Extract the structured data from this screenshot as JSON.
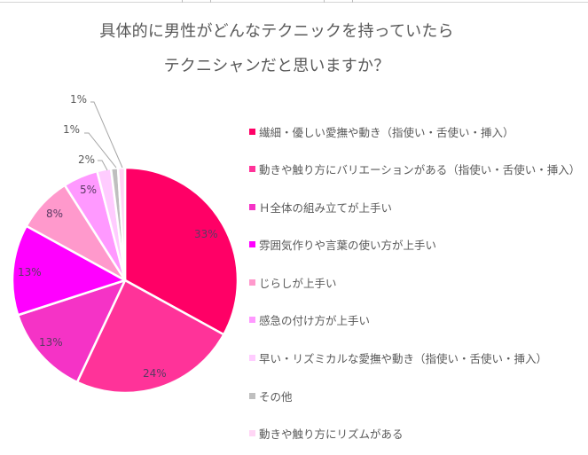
{
  "title": {
    "line1": "具体的に男性がどんなテクニックを持っていたら",
    "line2": "テクニシャンだと思いますか？"
  },
  "chart_data": {
    "type": "pie",
    "title": "具体的に男性がどんなテクニックを持っていたらテクニシャンだと思いますか？",
    "start_angle": 0,
    "direction": "clockwise",
    "legend_position": "right",
    "categories": [
      "繊細・優しい愛撫や動き（指使い・舌使い・挿入）",
      "動きや触り方にバリエーションがある（指使い・舌使い・挿入）",
      "Ｈ全体の組み立てが上手い",
      "雰囲気作りや言葉の使い方が上手い",
      "じらしが上手い",
      "感急の付け方が上手い",
      "早い・リズミカルな愛撫や動き（指使い・舌使い・挿入）",
      "その他",
      "動きや触り方にリズムがある"
    ],
    "values": [
      33,
      24,
      13,
      13,
      8,
      5,
      2,
      1,
      1
    ],
    "labels": [
      "33%",
      "24%",
      "13%",
      "13%",
      "8%",
      "5%",
      "2%",
      "1%",
      "1%"
    ],
    "colors": [
      "#ff0066",
      "#ff3399",
      "#f533c6",
      "#ff00ff",
      "#ff99cc",
      "#ff99ff",
      "#ffccff",
      "#bfbfbf",
      "#ffd6f5"
    ]
  },
  "legend": {
    "items": [
      {
        "label": "繊細・優しい愛撫や動き（指使い・舌使い・挿入）",
        "color": "#ff0066"
      },
      {
        "label": "動きや触り方にバリエーションがある（指使い・舌使い・挿入）",
        "color": "#ff3399"
      },
      {
        "label": "Ｈ全体の組み立てが上手い",
        "color": "#f533c6"
      },
      {
        "label": "雰囲気作りや言葉の使い方が上手い",
        "color": "#ff00ff"
      },
      {
        "label": "じらしが上手い",
        "color": "#ff99cc"
      },
      {
        "label": "感急の付け方が上手い",
        "color": "#ff99ff"
      },
      {
        "label": "早い・リズミカルな愛撫や動き（指使い・舌使い・挿入）",
        "color": "#ffccff"
      },
      {
        "label": "その他",
        "color": "#bfbfbf"
      },
      {
        "label": "動きや触り方にリズムがある",
        "color": "#ffd6f5"
      }
    ]
  }
}
